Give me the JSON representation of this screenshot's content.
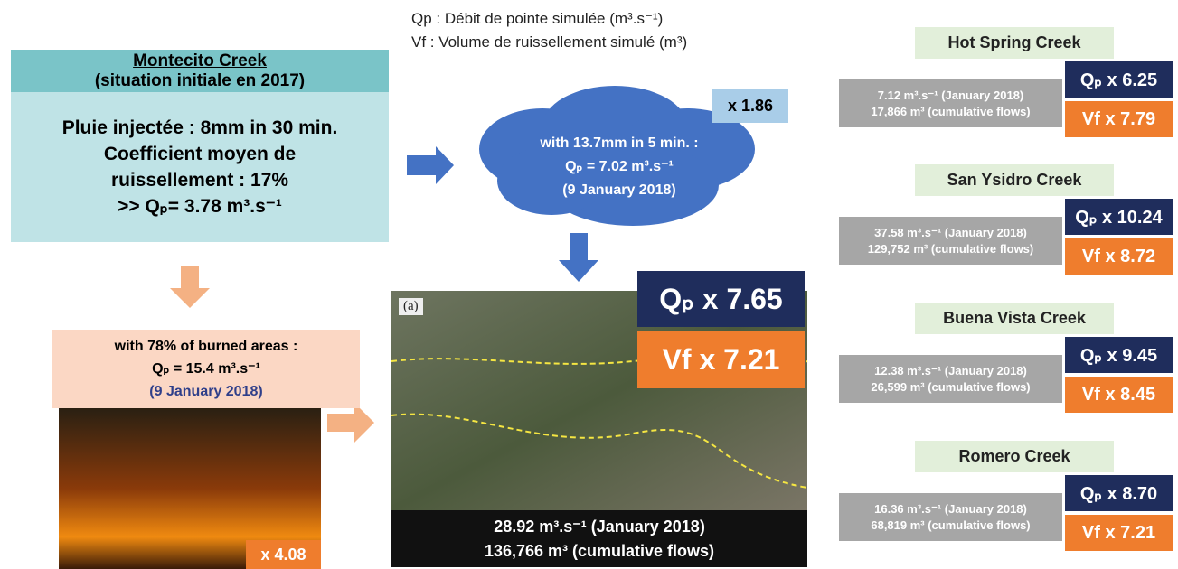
{
  "legend": {
    "qp": "Qp : Débit de pointe simulée (m³.s⁻¹)",
    "vf": "Vf : Volume de ruissellement simulé (m³)"
  },
  "initial": {
    "title": "Montecito Creek",
    "subtitle": "(situation initiale en 2017)",
    "lines": [
      "Pluie injectée : 8mm in 30 min.",
      "Coefficient moyen de",
      "ruissellement : 17%",
      ">> Qₚ= 3.78 m³.s⁻¹"
    ]
  },
  "cloud": {
    "factor": "x 1.86",
    "lines": [
      "with 13.7mm in 5 min. :",
      "Qₚ = 7.02 m³.s⁻¹",
      "(9 January 2018)"
    ]
  },
  "burned": {
    "lines": [
      "with 78% of burned areas :",
      "Qₚ = 15.4 m³.s⁻¹",
      "(9 January 2018)"
    ],
    "factor": "x 4.08"
  },
  "photo": {
    "label": "(a)",
    "lines": [
      "28.92 m³.s⁻¹ (January 2018)",
      "136,766 m³  (cumulative flows)"
    ],
    "qp": "Qₚ x 7.65",
    "vf": "Vf x 7.21"
  },
  "creeks": [
    {
      "name": "Hot Spring Creek",
      "flow": "7.12 m³.s⁻¹ (January 2018)",
      "volume": "17,866 m³  (cumulative flows)",
      "qp": "Qₚ x 6.25",
      "vf": "Vf x 7.79"
    },
    {
      "name": "San Ysidro Creek",
      "flow": "37.58 m³.s⁻¹ (January 2018)",
      "volume": "129,752 m³  (cumulative flows)",
      "qp": "Qₚ x 10.24",
      "vf": "Vf x 8.72"
    },
    {
      "name": "Buena Vista Creek",
      "flow": "12.38 m³.s⁻¹ (January 2018)",
      "volume": "26,599 m³  (cumulative flows)",
      "qp": "Qₚ x 9.45",
      "vf": "Vf x 8.45"
    },
    {
      "name": "Romero Creek",
      "flow": "16.36 m³.s⁻¹ (January 2018)",
      "volume": "68,819 m³  (cumulative flows)",
      "qp": "Qₚ x 8.70",
      "vf": "Vf x 7.21"
    }
  ]
}
